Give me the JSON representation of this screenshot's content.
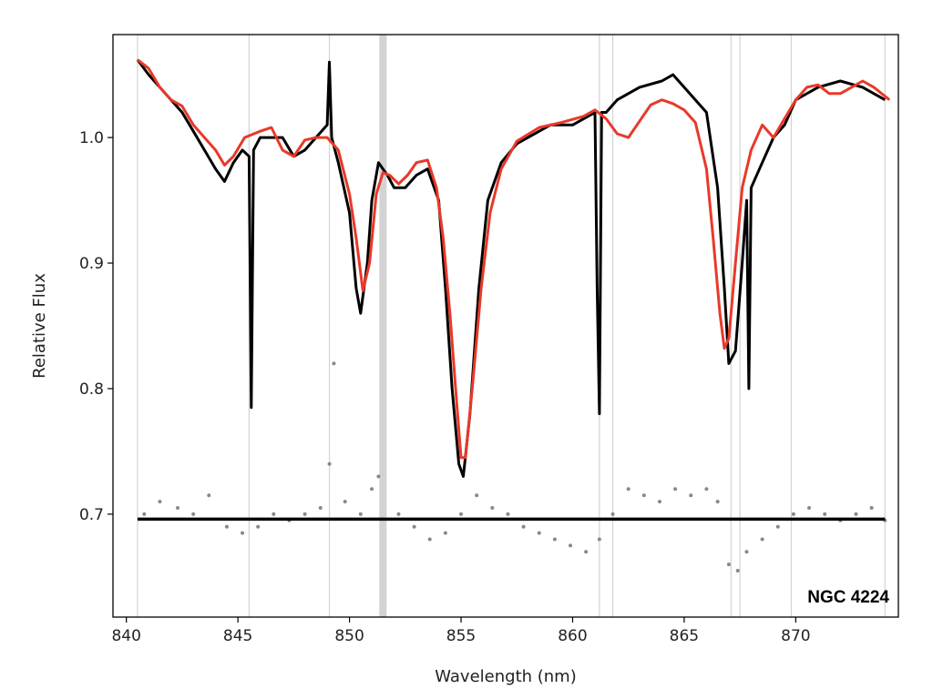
{
  "chart_data": {
    "type": "line",
    "xlabel": "Wavelength (nm)",
    "ylabel": "Relative Flux",
    "annotation": "NGC 4224",
    "xlim": [
      839.4,
      874.6
    ],
    "ylim": [
      0.618,
      1.082
    ],
    "xticks": [
      840,
      845,
      850,
      855,
      860,
      865,
      870
    ],
    "yticks": [
      0.7,
      0.8,
      0.9,
      1.0
    ],
    "grid": false,
    "colors": {
      "observed": "#000000",
      "model": "#e8392a",
      "residuals": "#888888",
      "zero_line": "#000000",
      "mask_lines": "#d3d3d3"
    },
    "masked_wavelengths": [
      840.5,
      845.5,
      849.1,
      851.5,
      861.2,
      861.8,
      867.1,
      867.5,
      869.8,
      874.0
    ],
    "residual_baseline": 0.696,
    "series": [
      {
        "key": "observed",
        "x": [
          840.5,
          841.0,
          841.5,
          842.0,
          842.5,
          843.0,
          843.5,
          844.0,
          844.4,
          844.8,
          845.2,
          845.5,
          845.6,
          845.7,
          846.0,
          846.5,
          847.0,
          847.5,
          848.0,
          848.5,
          849.0,
          849.1,
          849.2,
          849.5,
          850.0,
          850.3,
          850.5,
          850.8,
          851.0,
          851.3,
          851.7,
          852.0,
          852.5,
          853.0,
          853.5,
          854.0,
          854.3,
          854.6,
          854.9,
          855.1,
          855.4,
          855.8,
          856.2,
          856.8,
          857.5,
          858.0,
          859.0,
          860.0,
          861.0,
          861.1,
          861.2,
          861.3,
          861.5,
          862.0,
          863.0,
          864.0,
          864.5,
          865.0,
          865.5,
          866.0,
          866.5,
          866.8,
          867.0,
          867.3,
          867.6,
          867.8,
          867.9,
          868.0,
          868.5,
          869.0,
          869.5,
          870.0,
          871.0,
          872.0,
          873.0,
          874.0
        ],
        "y": [
          1.062,
          1.05,
          1.04,
          1.03,
          1.02,
          1.005,
          0.99,
          0.975,
          0.965,
          0.98,
          0.99,
          0.985,
          0.785,
          0.99,
          1.0,
          1.0,
          1.0,
          0.985,
          0.99,
          1.0,
          1.01,
          1.06,
          1.0,
          0.98,
          0.94,
          0.88,
          0.86,
          0.9,
          0.95,
          0.98,
          0.97,
          0.96,
          0.96,
          0.97,
          0.975,
          0.95,
          0.88,
          0.8,
          0.74,
          0.73,
          0.78,
          0.88,
          0.95,
          0.98,
          0.995,
          1.0,
          1.01,
          1.01,
          1.02,
          0.88,
          0.78,
          1.02,
          1.02,
          1.03,
          1.04,
          1.045,
          1.05,
          1.04,
          1.03,
          1.02,
          0.96,
          0.88,
          0.82,
          0.83,
          0.9,
          0.95,
          0.8,
          0.96,
          0.98,
          1.0,
          1.01,
          1.03,
          1.04,
          1.045,
          1.04,
          1.03
        ]
      },
      {
        "key": "model",
        "x": [
          840.5,
          841.0,
          841.5,
          842.0,
          842.5,
          843.0,
          843.5,
          844.0,
          844.4,
          844.8,
          845.3,
          846.0,
          846.5,
          847.0,
          847.5,
          848.0,
          848.5,
          849.0,
          849.5,
          850.0,
          850.3,
          850.6,
          850.9,
          851.2,
          851.5,
          851.8,
          852.2,
          852.6,
          853.0,
          853.5,
          853.9,
          854.2,
          854.5,
          854.8,
          855.0,
          855.2,
          855.5,
          855.9,
          856.3,
          856.8,
          857.5,
          858.5,
          859.5,
          860.5,
          861.0,
          861.5,
          862.0,
          862.5,
          863.0,
          863.5,
          864.0,
          864.5,
          865.0,
          865.5,
          866.0,
          866.3,
          866.6,
          866.8,
          867.0,
          867.3,
          867.6,
          868.0,
          868.5,
          869.0,
          869.5,
          870.0,
          870.5,
          871.0,
          871.5,
          872.0,
          872.5,
          873.0,
          873.5,
          874.2
        ],
        "y": [
          1.062,
          1.055,
          1.04,
          1.03,
          1.025,
          1.01,
          1.0,
          0.99,
          0.978,
          0.985,
          1.0,
          1.005,
          1.008,
          0.99,
          0.985,
          0.998,
          1.0,
          1.0,
          0.99,
          0.955,
          0.92,
          0.878,
          0.9,
          0.955,
          0.972,
          0.97,
          0.963,
          0.97,
          0.98,
          0.982,
          0.96,
          0.92,
          0.86,
          0.79,
          0.745,
          0.745,
          0.8,
          0.88,
          0.94,
          0.975,
          0.997,
          1.008,
          1.012,
          1.017,
          1.022,
          1.015,
          1.003,
          1.0,
          1.013,
          1.026,
          1.03,
          1.027,
          1.022,
          1.012,
          0.975,
          0.92,
          0.86,
          0.832,
          0.84,
          0.9,
          0.96,
          0.99,
          1.01,
          1.0,
          1.015,
          1.03,
          1.04,
          1.042,
          1.035,
          1.035,
          1.04,
          1.045,
          1.04,
          1.03
        ]
      },
      {
        "key": "residuals",
        "kind": "scatter",
        "x": [
          840.8,
          841.5,
          842.3,
          843.0,
          843.7,
          844.5,
          845.2,
          845.9,
          846.6,
          847.3,
          848.0,
          848.7,
          849.1,
          849.3,
          849.8,
          850.5,
          851.0,
          851.3,
          852.2,
          852.9,
          853.6,
          854.3,
          855.0,
          855.7,
          856.4,
          857.1,
          857.8,
          858.5,
          859.2,
          859.9,
          860.6,
          861.2,
          861.8,
          862.5,
          863.2,
          863.9,
          864.6,
          865.3,
          866.0,
          866.5,
          867.0,
          867.4,
          867.8,
          868.5,
          869.2,
          869.9,
          870.6,
          871.3,
          872.0,
          872.7,
          873.4,
          874.0
        ],
        "y": [
          0.7,
          0.71,
          0.705,
          0.7,
          0.715,
          0.69,
          0.685,
          0.69,
          0.7,
          0.695,
          0.7,
          0.705,
          0.74,
          0.82,
          0.71,
          0.7,
          0.72,
          0.73,
          0.7,
          0.69,
          0.68,
          0.685,
          0.7,
          0.715,
          0.705,
          0.7,
          0.69,
          0.685,
          0.68,
          0.675,
          0.67,
          0.68,
          0.7,
          0.72,
          0.715,
          0.71,
          0.72,
          0.715,
          0.72,
          0.71,
          0.66,
          0.655,
          0.67,
          0.68,
          0.69,
          0.7,
          0.705,
          0.7,
          0.695,
          0.7,
          0.705,
          0.695
        ]
      }
    ]
  }
}
